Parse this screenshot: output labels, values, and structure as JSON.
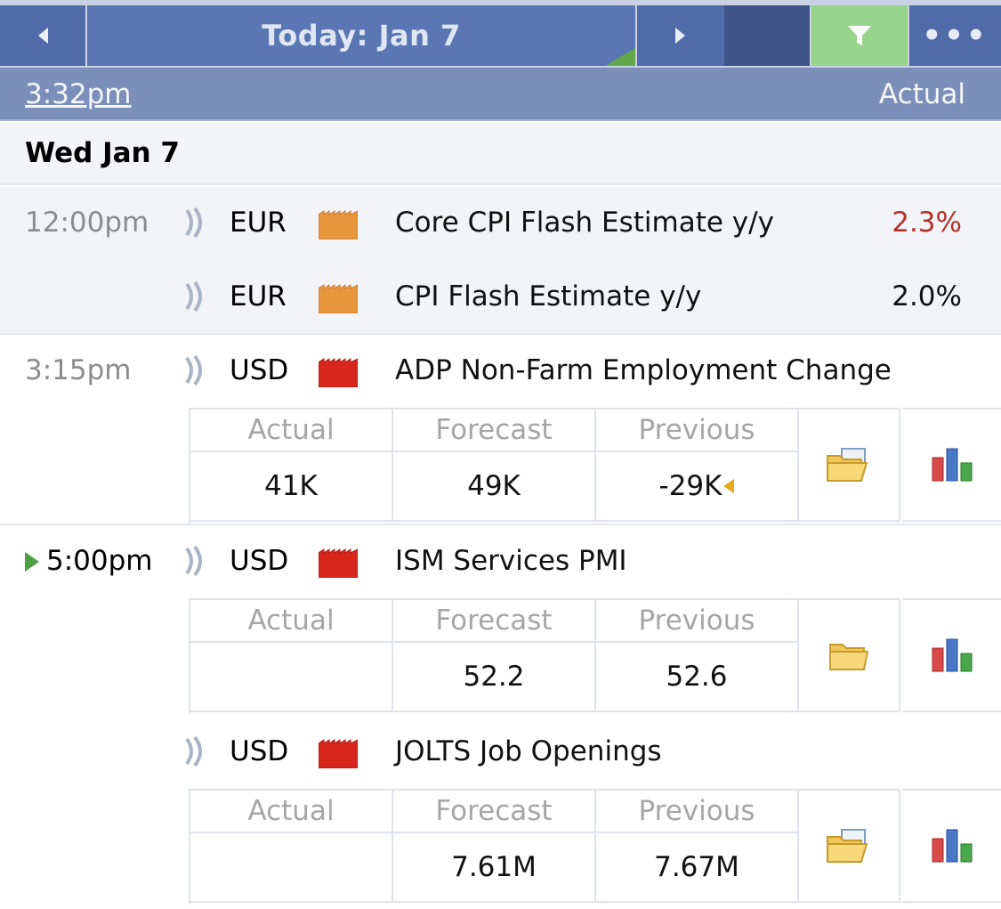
{
  "nav": {
    "title": "Today: Jan 7",
    "more_label": "•••",
    "filter_active_color": "#98d48c"
  },
  "timebar": {
    "current_time": "3:32pm",
    "actual_label": "Actual"
  },
  "day": {
    "label": "Wed Jan 7"
  },
  "events": [
    {
      "time": "12:00pm",
      "currency": "EUR",
      "impact": "medium",
      "name": "Core CPI Flash Estimate y/y",
      "actual": "2.3%"
    },
    {
      "time": "",
      "currency": "EUR",
      "impact": "medium",
      "name": "CPI Flash Estimate y/y",
      "actual": "2.0%"
    },
    {
      "time": "3:15pm",
      "currency": "USD",
      "impact": "high",
      "name": "ADP Non-Farm Employment Change",
      "detail": {
        "actual_header": "Actual",
        "forecast_header": "Forecast",
        "previous_header": "Previous",
        "actual": "41K",
        "forecast": "49K",
        "previous": "-29K"
      }
    },
    {
      "time": "5:00pm",
      "currency": "USD",
      "impact": "high",
      "name": "ISM Services PMI",
      "detail": {
        "actual_header": "Actual",
        "forecast_header": "Forecast",
        "previous_header": "Previous",
        "actual": "",
        "forecast": "52.2",
        "previous": "52.6"
      }
    },
    {
      "time": "",
      "currency": "USD",
      "impact": "high",
      "name": "JOLTS Job Openings",
      "detail": {
        "actual_header": "Actual",
        "forecast_header": "Forecast",
        "previous_header": "Previous",
        "actual": "",
        "forecast": "7.61M",
        "previous": "7.67M"
      }
    }
  ],
  "colors": {
    "nav_blue": "#4f6ba8",
    "impact_medium": "#e8963c",
    "impact_high": "#d8261c",
    "actual_worse": "#b3322c"
  }
}
